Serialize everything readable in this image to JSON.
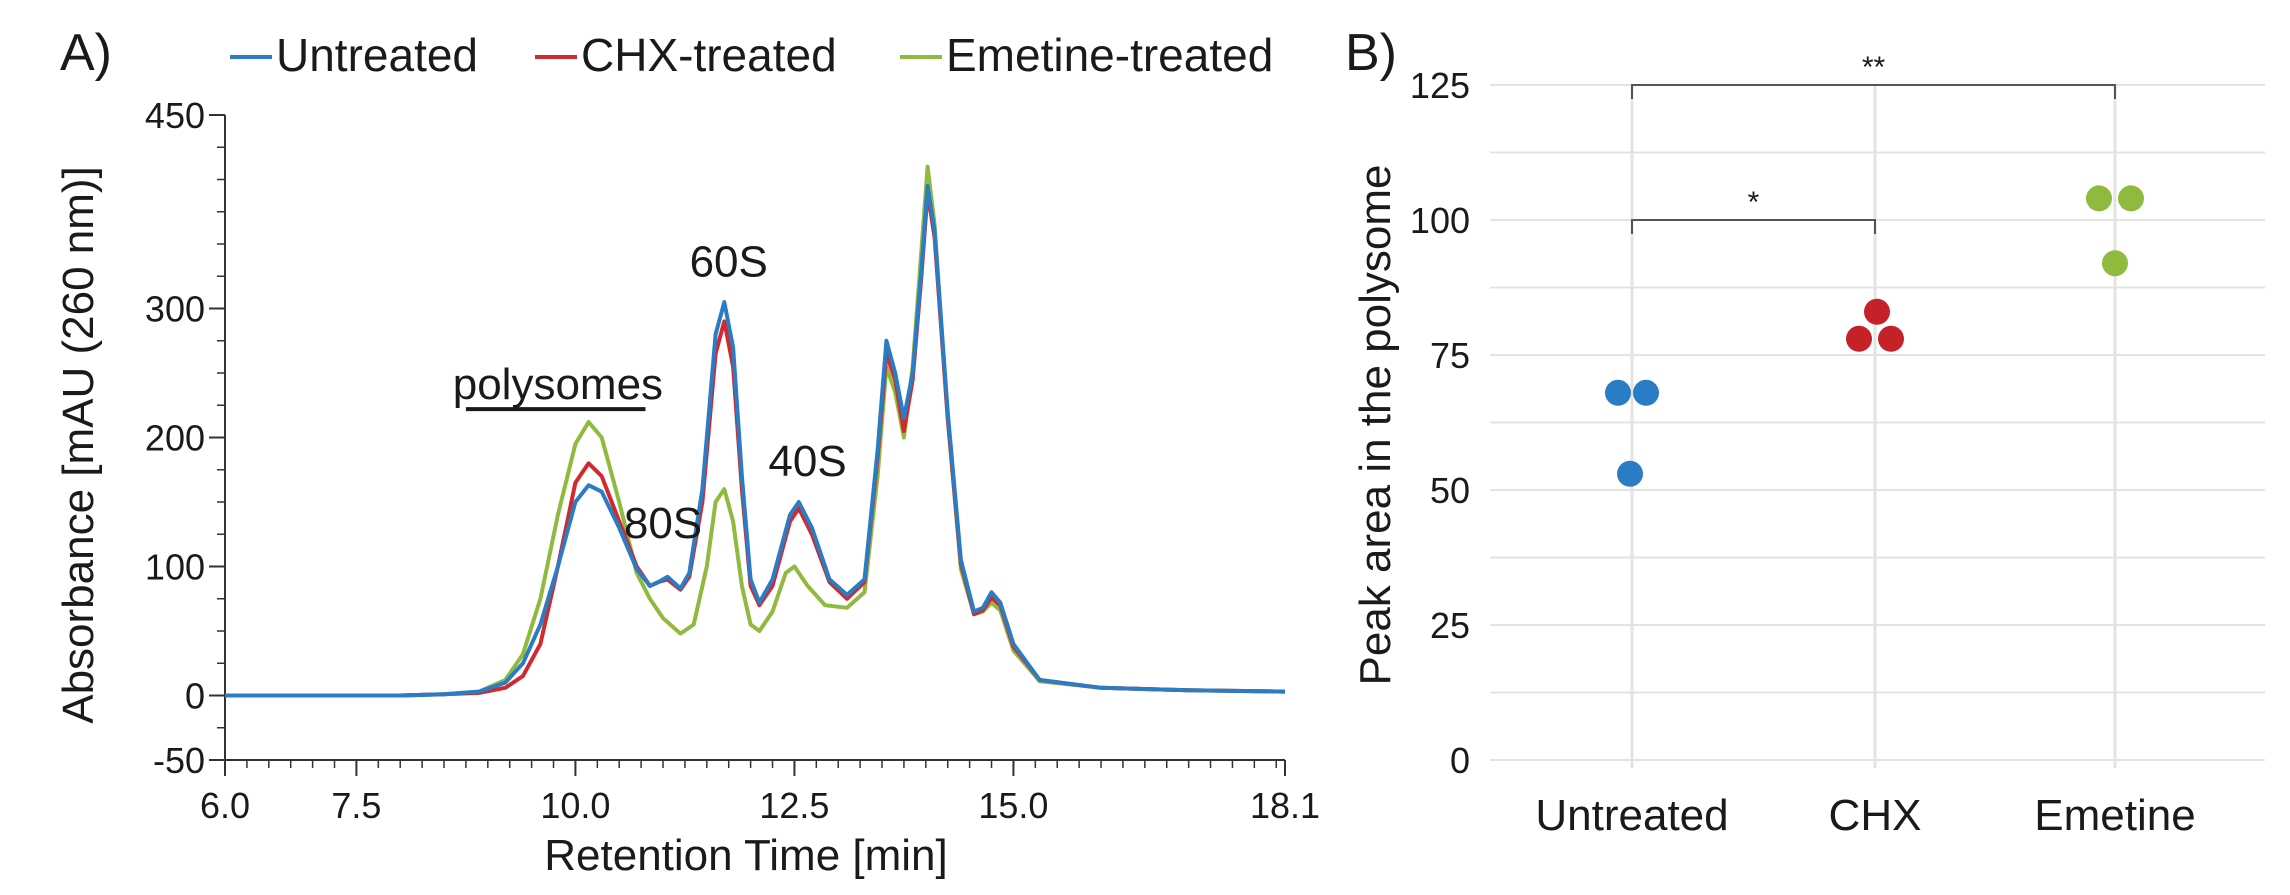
{
  "chart_data": [
    {
      "panel_label": "A)",
      "type": "line",
      "xlabel": "Retention Time [min]",
      "ylabel": "Absorbance [mAU (260 nm)]",
      "xlim": [
        6.0,
        18.1
      ],
      "ylim": [
        -50,
        450
      ],
      "x_ticks": [
        "6.0",
        "7.5",
        "10.0",
        "12.5",
        "15.0",
        "18.1"
      ],
      "y_ticks": [
        "450",
        "300",
        "200",
        "100",
        "0",
        "-50"
      ],
      "legend_position": "top",
      "series": [
        {
          "name": "Untreated",
          "color": "#2a7cc4",
          "points": [
            [
              6.0,
              0
            ],
            [
              8.0,
              0
            ],
            [
              8.5,
              1
            ],
            [
              8.9,
              3
            ],
            [
              9.2,
              10
            ],
            [
              9.4,
              25
            ],
            [
              9.6,
              55
            ],
            [
              9.8,
              100
            ],
            [
              10.0,
              150
            ],
            [
              10.15,
              163
            ],
            [
              10.3,
              158
            ],
            [
              10.5,
              130
            ],
            [
              10.7,
              98
            ],
            [
              10.85,
              85
            ],
            [
              10.95,
              88
            ],
            [
              11.05,
              92
            ],
            [
              11.2,
              83
            ],
            [
              11.3,
              95
            ],
            [
              11.45,
              160
            ],
            [
              11.6,
              280
            ],
            [
              11.7,
              305
            ],
            [
              11.8,
              270
            ],
            [
              11.9,
              170
            ],
            [
              12.0,
              90
            ],
            [
              12.1,
              72
            ],
            [
              12.25,
              90
            ],
            [
              12.45,
              140
            ],
            [
              12.55,
              150
            ],
            [
              12.7,
              130
            ],
            [
              12.9,
              90
            ],
            [
              13.1,
              78
            ],
            [
              13.3,
              90
            ],
            [
              13.45,
              190
            ],
            [
              13.55,
              275
            ],
            [
              13.65,
              250
            ],
            [
              13.75,
              215
            ],
            [
              13.85,
              250
            ],
            [
              13.95,
              330
            ],
            [
              14.02,
              395
            ],
            [
              14.1,
              360
            ],
            [
              14.25,
              220
            ],
            [
              14.4,
              105
            ],
            [
              14.55,
              65
            ],
            [
              14.65,
              68
            ],
            [
              14.75,
              80
            ],
            [
              14.85,
              72
            ],
            [
              15.0,
              40
            ],
            [
              15.3,
              12
            ],
            [
              16.0,
              6
            ],
            [
              17.0,
              4
            ],
            [
              18.1,
              3
            ]
          ]
        },
        {
          "name": "CHX-treated",
          "color": "#d12a2e",
          "points": [
            [
              6.0,
              0
            ],
            [
              8.0,
              0
            ],
            [
              8.5,
              1
            ],
            [
              8.9,
              2
            ],
            [
              9.2,
              6
            ],
            [
              9.4,
              15
            ],
            [
              9.6,
              40
            ],
            [
              9.8,
              100
            ],
            [
              10.0,
              165
            ],
            [
              10.15,
              180
            ],
            [
              10.3,
              170
            ],
            [
              10.5,
              135
            ],
            [
              10.7,
              100
            ],
            [
              10.85,
              85
            ],
            [
              10.95,
              88
            ],
            [
              11.05,
              90
            ],
            [
              11.2,
              82
            ],
            [
              11.3,
              92
            ],
            [
              11.45,
              150
            ],
            [
              11.6,
              265
            ],
            [
              11.7,
              290
            ],
            [
              11.8,
              255
            ],
            [
              11.9,
              160
            ],
            [
              12.0,
              85
            ],
            [
              12.1,
              70
            ],
            [
              12.25,
              85
            ],
            [
              12.45,
              135
            ],
            [
              12.55,
              145
            ],
            [
              12.7,
              125
            ],
            [
              12.9,
              88
            ],
            [
              13.1,
              75
            ],
            [
              13.3,
              88
            ],
            [
              13.45,
              185
            ],
            [
              13.55,
              265
            ],
            [
              13.65,
              245
            ],
            [
              13.75,
              205
            ],
            [
              13.85,
              245
            ],
            [
              13.95,
              325
            ],
            [
              14.02,
              390
            ],
            [
              14.1,
              355
            ],
            [
              14.25,
              215
            ],
            [
              14.4,
              102
            ],
            [
              14.55,
              63
            ],
            [
              14.65,
              66
            ],
            [
              14.75,
              76
            ],
            [
              14.85,
              70
            ],
            [
              15.0,
              38
            ],
            [
              15.3,
              12
            ],
            [
              16.0,
              6
            ],
            [
              17.0,
              4
            ],
            [
              18.1,
              3
            ]
          ]
        },
        {
          "name": "Emetine-treated",
          "color": "#8fba3d",
          "points": [
            [
              6.0,
              0
            ],
            [
              8.0,
              0
            ],
            [
              8.5,
              1
            ],
            [
              8.9,
              3
            ],
            [
              9.2,
              12
            ],
            [
              9.4,
              32
            ],
            [
              9.6,
              75
            ],
            [
              9.8,
              140
            ],
            [
              10.0,
              195
            ],
            [
              10.15,
              212
            ],
            [
              10.3,
              200
            ],
            [
              10.5,
              150
            ],
            [
              10.7,
              95
            ],
            [
              10.85,
              75
            ],
            [
              11.0,
              60
            ],
            [
              11.2,
              48
            ],
            [
              11.35,
              55
            ],
            [
              11.5,
              100
            ],
            [
              11.6,
              150
            ],
            [
              11.7,
              160
            ],
            [
              11.8,
              135
            ],
            [
              11.9,
              85
            ],
            [
              12.0,
              55
            ],
            [
              12.1,
              50
            ],
            [
              12.25,
              65
            ],
            [
              12.4,
              95
            ],
            [
              12.5,
              100
            ],
            [
              12.65,
              85
            ],
            [
              12.85,
              70
            ],
            [
              13.1,
              68
            ],
            [
              13.3,
              80
            ],
            [
              13.45,
              170
            ],
            [
              13.55,
              255
            ],
            [
              13.65,
              235
            ],
            [
              13.75,
              200
            ],
            [
              13.85,
              255
            ],
            [
              13.95,
              345
            ],
            [
              14.02,
              410
            ],
            [
              14.1,
              365
            ],
            [
              14.25,
              215
            ],
            [
              14.4,
              98
            ],
            [
              14.55,
              63
            ],
            [
              14.65,
              65
            ],
            [
              14.75,
              72
            ],
            [
              14.85,
              66
            ],
            [
              15.0,
              35
            ],
            [
              15.3,
              11
            ],
            [
              16.0,
              6
            ],
            [
              17.0,
              4
            ],
            [
              18.1,
              3
            ]
          ]
        }
      ],
      "annotations": [
        {
          "text": "polysomes",
          "x": 9.8,
          "y": 230
        },
        {
          "text": "80S",
          "x": 11.0,
          "y": 122
        },
        {
          "text": "60S",
          "x": 11.75,
          "y": 325
        },
        {
          "text": "40S",
          "x": 12.65,
          "y": 170
        }
      ],
      "polysome_bar": [
        8.75,
        10.8,
        222
      ]
    },
    {
      "panel_label": "B)",
      "type": "scatter",
      "xlabel": "",
      "ylabel": "Peak area in the polysome",
      "categories": [
        "Untreated",
        "CHX",
        "Emetine"
      ],
      "ylim": [
        0,
        125
      ],
      "y_ticks": [
        0,
        25,
        50,
        75,
        100,
        125
      ],
      "grid": true,
      "series": [
        {
          "category": "Untreated",
          "color": "#2a7cc4",
          "values": [
            68,
            68,
            53
          ]
        },
        {
          "category": "CHX",
          "color": "#c42128",
          "values": [
            83,
            78,
            78
          ]
        },
        {
          "category": "Emetine",
          "color": "#8fba3d",
          "values": [
            104,
            104,
            92
          ]
        }
      ],
      "significance": [
        {
          "from": "Untreated",
          "to": "CHX",
          "level": 100,
          "label": "*"
        },
        {
          "from": "Untreated",
          "to": "Emetine",
          "level": 125,
          "label": "**"
        }
      ]
    }
  ]
}
